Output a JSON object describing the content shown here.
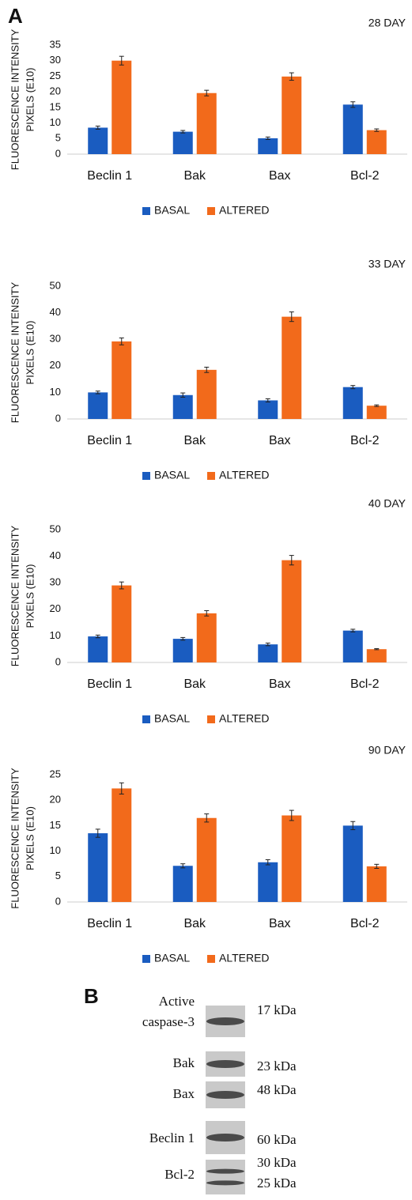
{
  "panel_labels": [
    "A",
    "B"
  ],
  "chart_data": [
    {
      "type": "bar",
      "title": "28 DAY",
      "y_label": [
        "FLUORESCENCE INTENSITY",
        "PIXELS (E10)"
      ],
      "categories": [
        "Beclin 1",
        "Bak",
        "Bax",
        "Bcl-2"
      ],
      "series": [
        {
          "name": "BASAL",
          "color": "#1a5cc0",
          "values": [
            8.5,
            7.2,
            5.1,
            15.9
          ],
          "errors": [
            0.5,
            0.4,
            0.4,
            0.9
          ]
        },
        {
          "name": "ALTERED",
          "color": "#f26a1b",
          "values": [
            30,
            19.6,
            24.9,
            7.7
          ],
          "errors": [
            1.4,
            0.9,
            1.2,
            0.4
          ]
        }
      ],
      "ylim": [
        0,
        35
      ],
      "yticks": [
        0,
        5,
        10,
        15,
        20,
        25,
        30,
        35
      ],
      "grid": false,
      "legend": "bottom"
    },
    {
      "type": "bar",
      "title": "33 DAY",
      "y_label": [
        "FLUORESCENCE INTENSITY",
        "PIXELS (E10)"
      ],
      "categories": [
        "Beclin 1",
        "Bak",
        "Bax",
        "Bcl-2"
      ],
      "series": [
        {
          "name": "BASAL",
          "color": "#1a5cc0",
          "values": [
            10,
            9,
            7,
            12
          ],
          "errors": [
            0.5,
            0.8,
            0.6,
            0.6
          ]
        },
        {
          "name": "ALTERED",
          "color": "#f26a1b",
          "values": [
            29.2,
            18.5,
            38.5,
            5
          ],
          "errors": [
            1.3,
            1,
            1.8,
            0.3
          ]
        }
      ],
      "ylim": [
        0,
        50
      ],
      "yticks": [
        0,
        10,
        20,
        30,
        40,
        50
      ],
      "grid": false,
      "legend": "bottom"
    },
    {
      "type": "bar",
      "title": "40 DAY",
      "y_label": [
        "FLUORESCENCE INTENSITY",
        "PIXELS (E10)"
      ],
      "categories": [
        "Beclin 1",
        "Bak",
        "Bax",
        "Bcl-2"
      ],
      "series": [
        {
          "name": "BASAL",
          "color": "#1a5cc0",
          "values": [
            9.8,
            8.9,
            6.8,
            12
          ],
          "errors": [
            0.5,
            0.5,
            0.5,
            0.5
          ]
        },
        {
          "name": "ALTERED",
          "color": "#f26a1b",
          "values": [
            29,
            18.5,
            38.5,
            5
          ],
          "errors": [
            1.3,
            1,
            1.8,
            0.2
          ]
        }
      ],
      "ylim": [
        0,
        50
      ],
      "yticks": [
        0,
        10,
        20,
        30,
        40,
        50
      ],
      "grid": false,
      "legend": "bottom"
    },
    {
      "type": "bar",
      "title": "90 DAY",
      "y_label": [
        "FLUORESCENCE INTENSITY",
        "PIXELS (E10)"
      ],
      "categories": [
        "Beclin 1",
        "Bak",
        "Bax",
        "Bcl-2"
      ],
      "series": [
        {
          "name": "BASAL",
          "color": "#1a5cc0",
          "values": [
            13.5,
            7.1,
            7.8,
            15
          ],
          "errors": [
            0.8,
            0.4,
            0.5,
            0.8
          ]
        },
        {
          "name": "ALTERED",
          "color": "#f26a1b",
          "values": [
            22.3,
            16.5,
            17,
            7
          ],
          "errors": [
            1.1,
            0.8,
            1,
            0.4
          ]
        }
      ],
      "ylim": [
        0,
        25
      ],
      "yticks": [
        0,
        5,
        10,
        15,
        20,
        25
      ],
      "grid": false,
      "legend": "bottom"
    }
  ],
  "blot": {
    "rows": [
      {
        "label": [
          "Active",
          "caspase-3"
        ],
        "sizes": [
          "17 kDa"
        ]
      },
      {
        "label": [
          "Bak"
        ],
        "sizes": [
          "23 kDa"
        ]
      },
      {
        "label": [
          "Bax"
        ],
        "sizes": [
          "48 kDa"
        ]
      },
      {
        "label": [
          "Beclin 1"
        ],
        "sizes": [
          "60 kDa"
        ]
      },
      {
        "label": [
          "Bcl-2"
        ],
        "sizes": [
          "30 kDa",
          "25 kDa"
        ]
      }
    ]
  }
}
